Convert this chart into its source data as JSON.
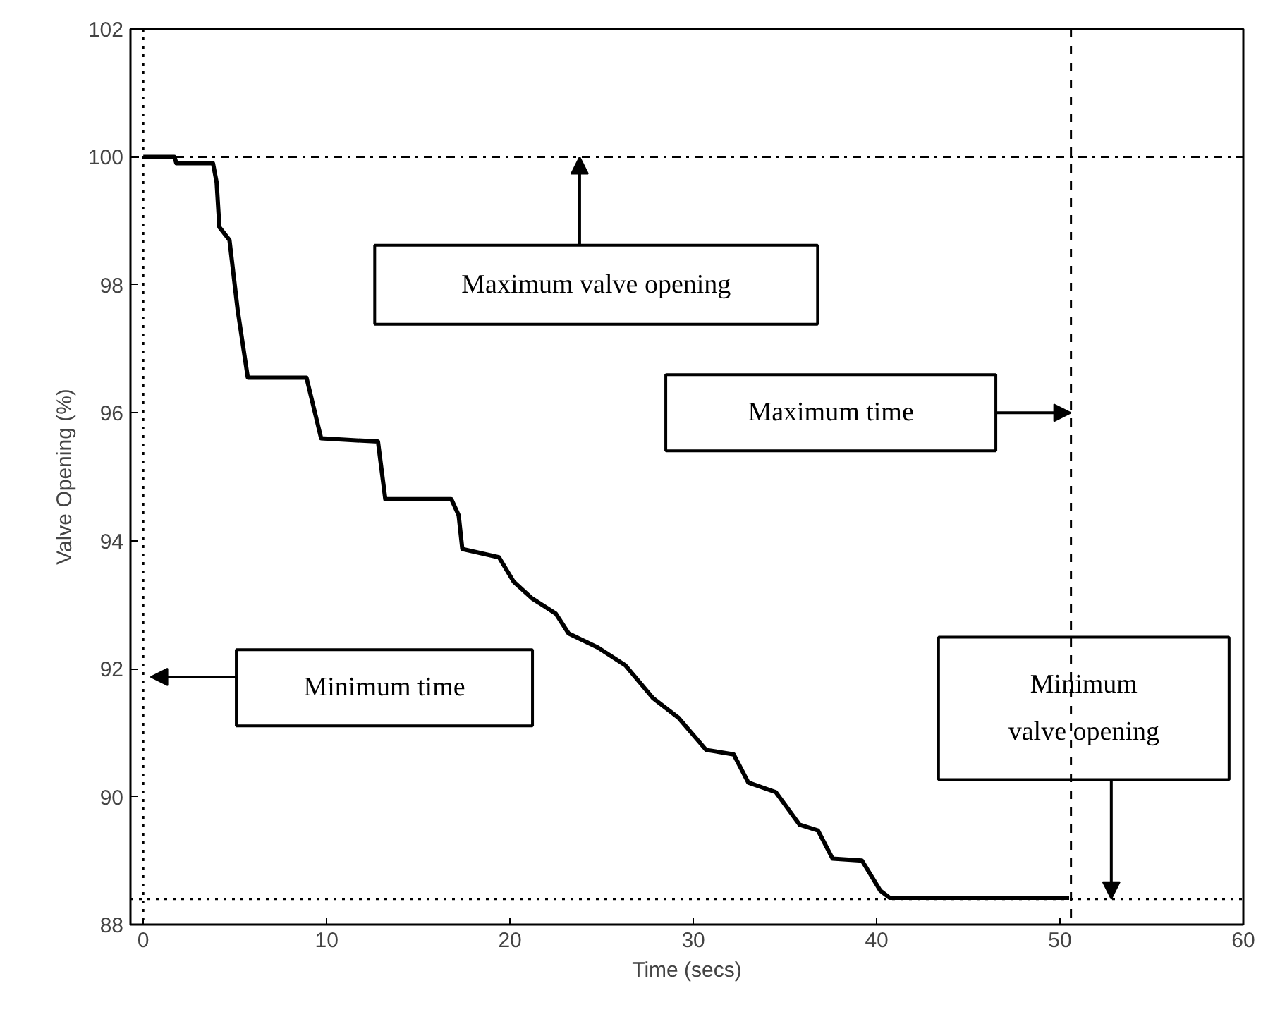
{
  "chart_data": {
    "type": "line",
    "xlabel": "Time (secs)",
    "ylabel": "Valve Opening (%)",
    "xlim": [
      -0.7,
      60
    ],
    "ylim": [
      88,
      102
    ],
    "xticks": [
      0,
      10,
      20,
      30,
      40,
      50,
      60
    ],
    "yticks": [
      88,
      90,
      92,
      94,
      96,
      98,
      100,
      102
    ],
    "grid": false,
    "line_style": "solid",
    "series": [
      {
        "color": "#000000",
        "x": [
          0,
          1.7,
          1.8,
          3.8,
          4.0,
          4.15,
          4.7,
          5.15,
          5.7,
          8.9,
          9.7,
          12.8,
          13.2,
          16.8,
          17.2,
          17.4,
          19.4,
          20.2,
          21.2,
          22.5,
          23.2,
          24.8,
          26.3,
          27.8,
          29.2,
          30.7,
          32.2,
          33.0,
          34.5,
          35.8,
          36.8,
          37.6,
          39.2,
          40.2,
          40.7,
          50.5
        ],
        "values": [
          100,
          100,
          99.9,
          99.9,
          99.6,
          98.9,
          98.7,
          97.6,
          96.55,
          96.55,
          95.6,
          95.55,
          94.65,
          94.65,
          94.4,
          93.87,
          93.74,
          93.36,
          93.1,
          92.86,
          92.55,
          92.33,
          92.05,
          91.54,
          91.23,
          90.73,
          90.66,
          90.22,
          90.07,
          89.56,
          89.47,
          89.03,
          89.0,
          88.53,
          88.42,
          88.42
        ]
      }
    ],
    "ref_lines": [
      {
        "axis": "y",
        "value": 100,
        "color": "#000000",
        "line_style": "dashdot"
      },
      {
        "axis": "x",
        "value": 50.6,
        "color": "#000000",
        "line_style": "dashed"
      },
      {
        "axis": "x",
        "value": 0,
        "color": "#000000",
        "line_style": "dotted"
      },
      {
        "axis": "y",
        "value": 88.4,
        "color": "#000000",
        "line_style": "dotted"
      }
    ],
    "annotations": [
      {
        "text": "Maximum valve opening",
        "x": 23.8,
        "y": 100
      },
      "Maximum time",
      "Minimum time",
      {
        "text": "Minimum\nvalve opening",
        "x": 52.8,
        "y": 88.4
      }
    ]
  }
}
